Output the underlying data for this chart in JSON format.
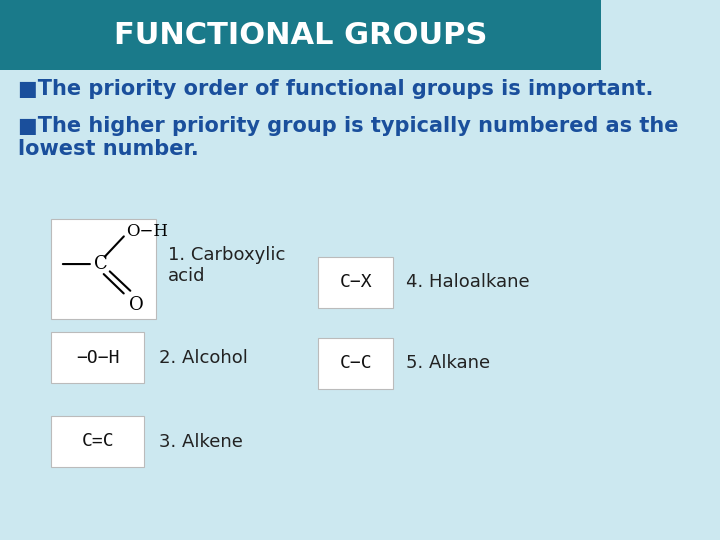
{
  "title": "FUNCTIONAL GROUPS",
  "title_bg_color": "#1a7a8a",
  "title_text_color": "#ffffff",
  "body_bg_color": "#cce8f0",
  "bullet_color": "#1a4f9c",
  "bullet1": "■The priority order of functional groups is important.",
  "bullet2": "■The higher priority group is typically numbered as the\nlowest number.",
  "label_color": "#222222",
  "formula_color": "#111111",
  "title_fontsize": 22,
  "bullet_fontsize": 15,
  "item_label_fontsize": 13,
  "item_formula_fontsize": 13
}
